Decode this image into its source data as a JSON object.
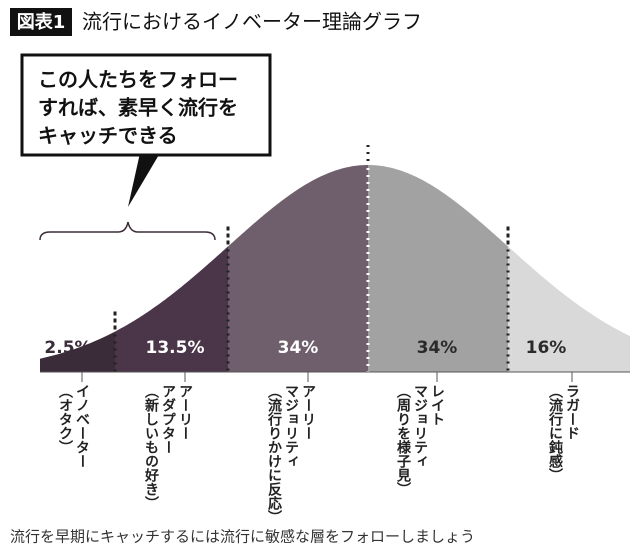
{
  "chart_data": {
    "type": "bell",
    "figure_label": "図表1",
    "title": "流行におけるイノベーター理論グラフ",
    "annotation": [
      "この人たちをフォロー",
      "すれば、素早く流行を",
      "キャッチできる"
    ],
    "categories": [
      [
        "イノベーター",
        "（オタク）"
      ],
      [
        "アーリー",
        "アダプター",
        "（新しいもの好き）"
      ],
      [
        "アーリー",
        "マジョリティ",
        "（流行りかけに反応）"
      ],
      [
        "レイト",
        "マジョリティ",
        "（周りを様子見）"
      ],
      [
        "ラガード",
        "（流行に鈍感）"
      ]
    ],
    "values": [
      2.5,
      13.5,
      34,
      34,
      16
    ],
    "value_labels": [
      "2.5%",
      "13.5%",
      "34%",
      "34%",
      "16%"
    ],
    "colors": [
      "#3b2c3a",
      "#4b3549",
      "#6f5f6c",
      "#a3a2a3",
      "#d9d9d9"
    ],
    "label_colors": [
      "#3b2c3a",
      "#ffffff",
      "#ffffff",
      "#2a2a2a",
      "#2a2a2a"
    ],
    "caption": "流行を早期にキャッチするには流行に敏感な層をフォローしましょう"
  }
}
